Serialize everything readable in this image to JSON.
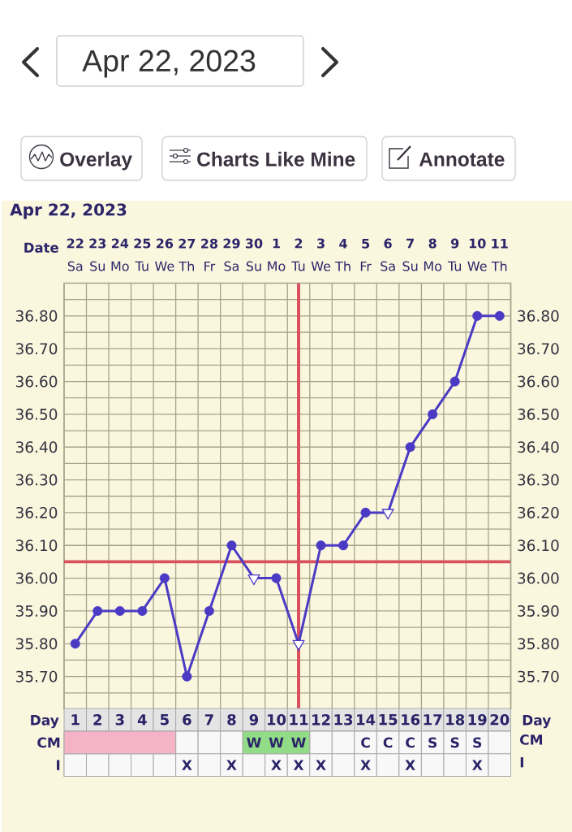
{
  "chart_data": [
    {
      "type": "other",
      "title": "Apr 22, 2023",
      "annotations": [
        "Overlay",
        "Charts Like Mine",
        "Annotate"
      ]
    },
    {
      "type": "line",
      "title": "Apr 22, 2023",
      "xlabel": "Date",
      "categories": [
        "**22** Sa",
        "**23** Su",
        "**24** Mo",
        "**25** Tu",
        "**26** We",
        "**27** Th",
        "**28** Fr",
        "**29** Sa",
        "**30** Su",
        "**1** Mo",
        "**2** Tu",
        "**3** We",
        "**4** Th",
        "**5** Fr",
        "**6** Sa",
        "**7** Su",
        "**8** Mo",
        "**9** Tu",
        "**10** We",
        "**11** Th"
      ],
      "series": [
        {
          "type": "line",
          "color": "#4b3bc4",
          "marker": "none",
          "values": [
            35.8,
            35.9,
            35.9,
            35.9,
            36.0,
            35.7,
            35.9,
            36.1,
            36.0,
            36.0,
            35.8,
            36.1,
            36.1,
            36.2,
            36.2,
            36.4,
            36.5,
            36.6,
            36.8,
            36.8
          ]
        },
        {
          "type": "scatter",
          "color": "#4b3bc4",
          "marker": "circle",
          "values": [
            35.8,
            35.9,
            35.9,
            35.9,
            36.0,
            35.7,
            35.9,
            36.1,
            null,
            36.0,
            null,
            36.1,
            36.1,
            36.2,
            null,
            36.4,
            36.5,
            36.6,
            36.8,
            36.8
          ]
        },
        {
          "type": "scatter",
          "color": "#4b3bc4",
          "marker": "triangle",
          "values": [
            null,
            null,
            null,
            null,
            null,
            null,
            null,
            null,
            36.0,
            null,
            35.8,
            null,
            null,
            null,
            36.2,
            null,
            null,
            null,
            null,
            null
          ]
        }
      ],
      "ylim": [
        35.6,
        36.9
      ],
      "yticks": [
        {
          "value": 35.65,
          "label": null
        },
        {
          "value": 35.7,
          "label": "35.70"
        },
        {
          "value": 35.75,
          "label": null
        },
        {
          "value": 35.8,
          "label": "35.80"
        },
        {
          "value": 35.85,
          "label": null
        },
        {
          "value": 35.9,
          "label": "35.90"
        },
        {
          "value": 35.95,
          "label": null
        },
        {
          "value": 36.0,
          "label": "36.00"
        },
        {
          "value": 36.1,
          "label": "36.10"
        },
        {
          "value": 36.15,
          "label": null
        },
        {
          "value": 36.2,
          "label": "36.20"
        },
        {
          "value": 36.25,
          "label": null
        },
        {
          "value": 36.3,
          "label": "36.30"
        },
        {
          "value": 36.35,
          "label": null
        },
        {
          "value": 36.4,
          "label": "36.40"
        },
        {
          "value": 36.45,
          "label": null
        },
        {
          "value": 36.5,
          "label": "36.50"
        },
        {
          "value": 36.55,
          "label": null
        },
        {
          "value": 36.6,
          "label": "36.60"
        },
        {
          "value": 36.65,
          "label": null
        },
        {
          "value": 36.7,
          "label": "36.70"
        },
        {
          "value": 36.75,
          "label": null
        },
        {
          "value": 36.8,
          "label": "36.80"
        },
        {
          "value": 36.85,
          "label": null
        }
      ],
      "y2lim": [
        35.6,
        36.9
      ],
      "y2ticks": [
        {
          "value": 35.65,
          "label": null
        },
        {
          "value": 35.7,
          "label": "35.70"
        },
        {
          "value": 35.75,
          "label": null
        },
        {
          "value": 35.8,
          "label": "35.80"
        },
        {
          "value": 35.85,
          "label": null
        },
        {
          "value": 35.9,
          "label": "35.90"
        },
        {
          "value": 35.95,
          "label": null
        },
        {
          "value": 36.0,
          "label": "36.00"
        },
        {
          "value": 36.1,
          "label": "36.10"
        },
        {
          "value": 36.15,
          "label": null
        },
        {
          "value": 36.2,
          "label": "36.20"
        },
        {
          "value": 36.25,
          "label": null
        },
        {
          "value": 36.3,
          "label": "36.30"
        },
        {
          "value": 36.35,
          "label": null
        },
        {
          "value": 36.4,
          "label": "36.40"
        },
        {
          "value": 36.45,
          "label": null
        },
        {
          "value": 36.5,
          "label": "36.50"
        },
        {
          "value": 36.55,
          "label": null
        },
        {
          "value": 36.6,
          "label": "36.60"
        },
        {
          "value": 36.65,
          "label": null
        },
        {
          "value": 36.7,
          "label": "36.70"
        },
        {
          "value": 36.75,
          "label": null
        },
        {
          "value": 36.8,
          "label": "36.80"
        },
        {
          "value": 36.85,
          "label": null
        }
      ],
      "grid": true,
      "ref_lines": [
        {
          "axis": "y",
          "value": 36.05,
          "color": "#d9505e"
        },
        {
          "axis": "x",
          "value": "**2** Tu",
          "color": "#d9505e"
        }
      ]
    },
    {
      "type": "heatmap",
      "xlabel": "Day",
      "categories": [
        "1",
        "2",
        "3",
        "4",
        "5",
        "6",
        "7",
        "8",
        "9",
        "10",
        "11",
        "12",
        "13",
        "14",
        "15",
        "16",
        "17",
        "18",
        "19",
        "20"
      ],
      "y_categories": [
        "CM",
        "I"
      ],
      "y2_categories": [
        "CM",
        "I"
      ],
      "cells": [
        [
          null,
          null,
          null,
          null,
          null,
          null,
          null,
          null,
          null,
          null,
          null,
          null,
          null,
          null,
          null,
          null,
          null,
          null,
          null,
          null
        ],
        [
          null,
          null,
          null,
          null,
          null,
          null,
          null,
          null,
          null,
          null,
          null,
          null,
          null,
          null,
          null,
          null,
          null,
          null,
          null,
          null
        ]
      ],
      "cell_labels": [
        [
          null,
          null,
          null,
          null,
          null,
          null,
          null,
          null,
          "W",
          "W",
          "W",
          null,
          null,
          "C",
          "C",
          "C",
          "S",
          "S",
          "S",
          null
        ],
        [
          null,
          null,
          null,
          null,
          null,
          "X",
          null,
          "X",
          null,
          "X",
          "X",
          "X",
          null,
          "X",
          null,
          "X",
          null,
          null,
          "X",
          null
        ]
      ],
      "bands": [
        {
          "axis": "x",
          "from": "1",
          "to": "5",
          "color": "#f4b3c6"
        },
        {
          "axis": "x",
          "from": "9",
          "to": "11",
          "color": "#92dc87"
        }
      ]
    }
  ]
}
